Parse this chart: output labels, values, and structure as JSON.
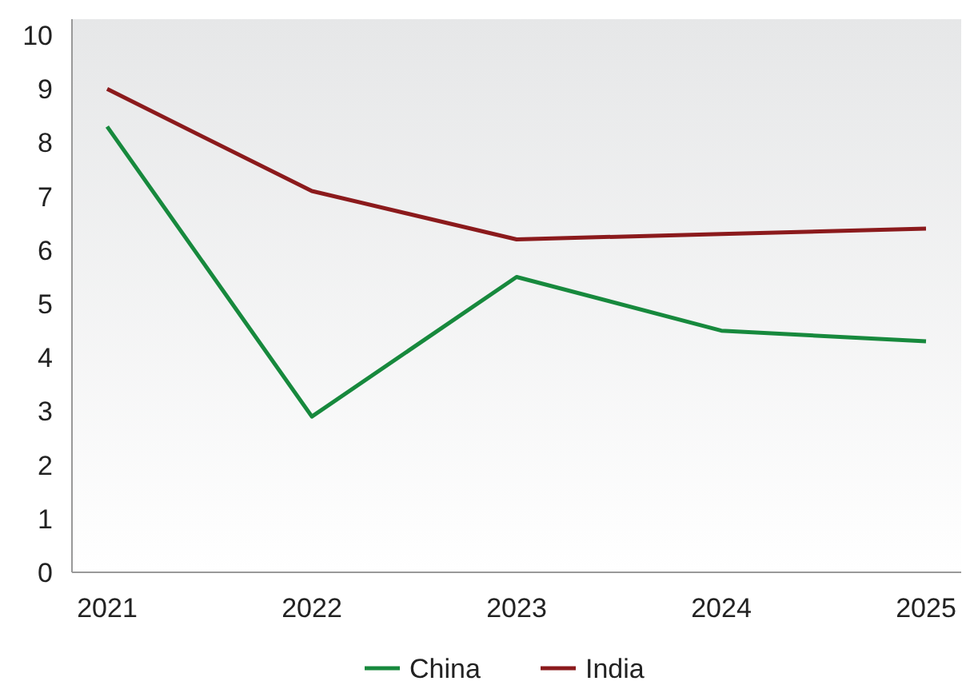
{
  "chart_data": {
    "type": "line",
    "categories": [
      "2021",
      "2022",
      "2023",
      "2024",
      "2025"
    ],
    "series": [
      {
        "name": "China",
        "color": "#17893d",
        "values": [
          8.3,
          2.9,
          5.5,
          4.5,
          4.3
        ]
      },
      {
        "name": "India",
        "color": "#8b1a1c",
        "values": [
          9.0,
          7.1,
          6.2,
          6.3,
          6.4
        ]
      }
    ],
    "ylim": [
      0,
      10.3
    ],
    "yticks": [
      0,
      1,
      2,
      3,
      4,
      5,
      6,
      7,
      8,
      9,
      10
    ],
    "grid": false,
    "legend": "bottom",
    "marker": "none",
    "line_style": "solid"
  }
}
